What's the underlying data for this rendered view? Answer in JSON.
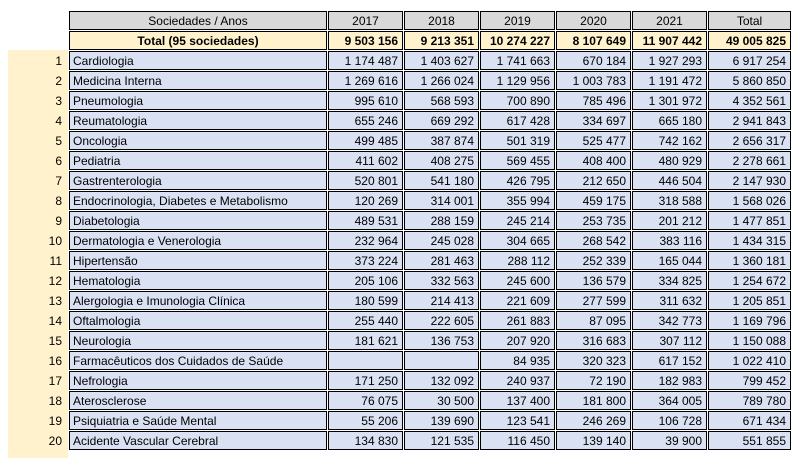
{
  "header": {
    "label": "Sociedades / Anos",
    "years": [
      "2017",
      "2018",
      "2019",
      "2020",
      "2021",
      "Total"
    ]
  },
  "colors": {
    "header_bg": "#D9D9D9",
    "total_row_bg": "#FFF2CC",
    "row_number_strip_bg": "#FFF2CC",
    "data_row_bg": "#D9E1F2",
    "border": "#000000",
    "text": "#000000"
  },
  "chart_data": {
    "type": "table",
    "title": "Sociedades / Anos",
    "columns": [
      "Sociedades / Anos",
      "2017",
      "2018",
      "2019",
      "2020",
      "2021",
      "Total"
    ],
    "number_format": "space-thousands-separator",
    "total_row": {
      "label": "Total (95 sociedades)",
      "values": [
        9503156,
        9213351,
        10274227,
        8107649,
        11907442,
        49005825
      ]
    },
    "rows": [
      {
        "rank": 1,
        "name": "Cardiologia",
        "values": [
          1174487,
          1403627,
          1741663,
          670184,
          1927293,
          6917254
        ]
      },
      {
        "rank": 2,
        "name": "Medicina Interna",
        "values": [
          1269616,
          1266024,
          1129956,
          1003783,
          1191472,
          5860850
        ]
      },
      {
        "rank": 3,
        "name": "Pneumologia",
        "values": [
          995610,
          568593,
          700890,
          785496,
          1301972,
          4352561
        ]
      },
      {
        "rank": 4,
        "name": "Reumatologia",
        "values": [
          655246,
          669292,
          617428,
          334697,
          665180,
          2941843
        ]
      },
      {
        "rank": 5,
        "name": "Oncologia",
        "values": [
          499485,
          387874,
          501319,
          525477,
          742162,
          2656317
        ]
      },
      {
        "rank": 6,
        "name": "Pediatria",
        "values": [
          411602,
          408275,
          569455,
          408400,
          480929,
          2278661
        ]
      },
      {
        "rank": 7,
        "name": "Gastrenterologia",
        "values": [
          520801,
          541180,
          426795,
          212650,
          446504,
          2147930
        ]
      },
      {
        "rank": 8,
        "name": "Endocrinologia, Diabetes e Metabolismo",
        "values": [
          120269,
          314001,
          355994,
          459175,
          318588,
          1568026
        ]
      },
      {
        "rank": 9,
        "name": "Diabetologia",
        "values": [
          489531,
          288159,
          245214,
          253735,
          201212,
          1477851
        ]
      },
      {
        "rank": 10,
        "name": "Dermatologia e Venerologia",
        "values": [
          232964,
          245028,
          304665,
          268542,
          383116,
          1434315
        ]
      },
      {
        "rank": 11,
        "name": "Hipertensão",
        "values": [
          373224,
          281463,
          288112,
          252339,
          165044,
          1360181
        ]
      },
      {
        "rank": 12,
        "name": "Hematologia",
        "values": [
          205106,
          332563,
          245600,
          136579,
          334825,
          1254672
        ]
      },
      {
        "rank": 13,
        "name": "Alergologia e Imunologia Clínica",
        "values": [
          180599,
          214413,
          221609,
          277599,
          311632,
          1205851
        ]
      },
      {
        "rank": 14,
        "name": "Oftalmologia",
        "values": [
          255440,
          222605,
          261883,
          87095,
          342773,
          1169796
        ]
      },
      {
        "rank": 15,
        "name": "Neurologia",
        "values": [
          181621,
          136753,
          207920,
          316683,
          307112,
          1150088
        ]
      },
      {
        "rank": 16,
        "name": "Farmacêuticos dos Cuidados de Saúde",
        "values": [
          null,
          null,
          84935,
          320323,
          617152,
          1022410
        ]
      },
      {
        "rank": 17,
        "name": "Nefrologia",
        "values": [
          171250,
          132092,
          240937,
          72190,
          182983,
          799452
        ]
      },
      {
        "rank": 18,
        "name": "Aterosclerose",
        "values": [
          76075,
          30500,
          137400,
          181800,
          364005,
          789780
        ]
      },
      {
        "rank": 19,
        "name": "Psiquiatria e Saúde Mental",
        "values": [
          55206,
          139690,
          123541,
          246269,
          106728,
          671434
        ]
      },
      {
        "rank": 20,
        "name": "Acidente Vascular Cerebral",
        "values": [
          134830,
          121535,
          116450,
          139140,
          39900,
          551855
        ]
      }
    ]
  }
}
